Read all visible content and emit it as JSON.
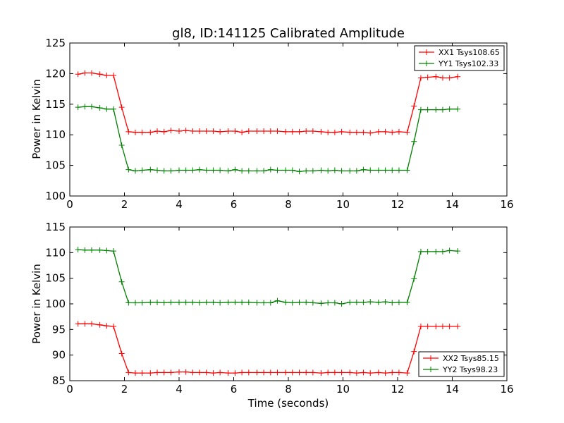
{
  "chart_data": [
    {
      "type": "line",
      "title": "gl8, ID:141125 Calibrated Amplitude",
      "xlabel": "",
      "ylabel": "Power in Kelvin",
      "xlim": [
        0,
        16
      ],
      "ylim": [
        100,
        125
      ],
      "xticks": [
        0,
        2,
        4,
        6,
        8,
        10,
        12,
        14,
        16
      ],
      "yticks": [
        100,
        105,
        110,
        115,
        120,
        125
      ],
      "grid": false,
      "legend_position": "top-right",
      "x": [
        0.3,
        0.55,
        0.8,
        1.1,
        1.35,
        1.6,
        1.9,
        2.15,
        2.4,
        2.65,
        2.95,
        3.2,
        3.45,
        3.7,
        4.0,
        4.25,
        4.5,
        4.75,
        5.0,
        5.25,
        5.5,
        5.8,
        6.05,
        6.3,
        6.55,
        6.85,
        7.1,
        7.35,
        7.6,
        7.9,
        8.15,
        8.4,
        8.65,
        8.9,
        9.2,
        9.45,
        9.7,
        9.95,
        10.25,
        10.5,
        10.75,
        11.0,
        11.3,
        11.55,
        11.8,
        12.05,
        12.35,
        12.6,
        12.85,
        13.1,
        13.4,
        13.65,
        13.9,
        14.2
      ],
      "series": [
        {
          "name": "XX1 Tsys108.65",
          "color": "#ff0000",
          "values": [
            119.9,
            120.1,
            120.1,
            119.9,
            119.7,
            119.7,
            114.5,
            110.5,
            110.4,
            110.4,
            110.4,
            110.6,
            110.5,
            110.7,
            110.6,
            110.7,
            110.6,
            110.6,
            110.6,
            110.6,
            110.5,
            110.6,
            110.6,
            110.4,
            110.6,
            110.6,
            110.6,
            110.6,
            110.6,
            110.5,
            110.5,
            110.5,
            110.6,
            110.6,
            110.5,
            110.4,
            110.4,
            110.5,
            110.4,
            110.4,
            110.4,
            110.3,
            110.5,
            110.5,
            110.4,
            110.5,
            110.4,
            114.7,
            119.3,
            119.4,
            119.5,
            119.3,
            119.3,
            119.5
          ]
        },
        {
          "name": "YY1 Tsys102.33",
          "color": "#008000",
          "values": [
            114.5,
            114.6,
            114.6,
            114.4,
            114.2,
            114.2,
            108.3,
            104.3,
            104.1,
            104.2,
            104.3,
            104.2,
            104.1,
            104.1,
            104.2,
            104.2,
            104.2,
            104.3,
            104.2,
            104.2,
            104.2,
            104.1,
            104.3,
            104.1,
            104.1,
            104.1,
            104.1,
            104.3,
            104.2,
            104.2,
            104.2,
            104.0,
            104.1,
            104.1,
            104.2,
            104.1,
            104.2,
            104.1,
            104.1,
            104.1,
            104.3,
            104.2,
            104.2,
            104.2,
            104.2,
            104.2,
            104.2,
            108.9,
            114.1,
            114.1,
            114.1,
            114.1,
            114.2,
            114.2
          ]
        }
      ]
    },
    {
      "type": "line",
      "title": "",
      "xlabel": "Time (seconds)",
      "ylabel": "Power in Kelvin",
      "xlim": [
        0,
        16
      ],
      "ylim": [
        85,
        115
      ],
      "xticks": [
        0,
        2,
        4,
        6,
        8,
        10,
        12,
        14,
        16
      ],
      "yticks": [
        85,
        90,
        95,
        100,
        105,
        110,
        115
      ],
      "grid": false,
      "legend_position": "bottom-right",
      "x": [
        0.3,
        0.55,
        0.8,
        1.1,
        1.35,
        1.6,
        1.9,
        2.15,
        2.4,
        2.65,
        2.95,
        3.2,
        3.45,
        3.7,
        4.0,
        4.25,
        4.5,
        4.75,
        5.0,
        5.25,
        5.5,
        5.8,
        6.05,
        6.3,
        6.55,
        6.85,
        7.1,
        7.35,
        7.6,
        7.9,
        8.15,
        8.4,
        8.65,
        8.9,
        9.2,
        9.45,
        9.7,
        9.95,
        10.25,
        10.5,
        10.75,
        11.0,
        11.3,
        11.55,
        11.8,
        12.05,
        12.35,
        12.6,
        12.85,
        13.1,
        13.4,
        13.65,
        13.9,
        14.2
      ],
      "series": [
        {
          "name": "XX2 Tsys85.15",
          "color": "#ff0000",
          "values": [
            96.1,
            96.1,
            96.1,
            95.9,
            95.7,
            95.6,
            90.3,
            86.6,
            86.5,
            86.5,
            86.5,
            86.6,
            86.6,
            86.6,
            86.7,
            86.7,
            86.6,
            86.6,
            86.6,
            86.5,
            86.6,
            86.5,
            86.5,
            86.6,
            86.6,
            86.6,
            86.6,
            86.6,
            86.6,
            86.6,
            86.6,
            86.6,
            86.6,
            86.6,
            86.5,
            86.6,
            86.6,
            86.6,
            86.6,
            86.5,
            86.6,
            86.5,
            86.6,
            86.5,
            86.6,
            86.6,
            86.5,
            90.7,
            95.6,
            95.6,
            95.6,
            95.6,
            95.6,
            95.6
          ]
        },
        {
          "name": "YY2 Tsys98.23",
          "color": "#008000",
          "values": [
            110.6,
            110.5,
            110.5,
            110.5,
            110.4,
            110.3,
            104.3,
            100.2,
            100.2,
            100.2,
            100.3,
            100.3,
            100.2,
            100.3,
            100.3,
            100.3,
            100.3,
            100.2,
            100.3,
            100.3,
            100.2,
            100.3,
            100.3,
            100.3,
            100.3,
            100.2,
            100.2,
            100.2,
            100.6,
            100.3,
            100.2,
            100.3,
            100.3,
            100.2,
            100.1,
            100.2,
            100.2,
            100.0,
            100.3,
            100.3,
            100.3,
            100.4,
            100.3,
            100.4,
            100.2,
            100.3,
            100.3,
            104.9,
            110.2,
            110.2,
            110.2,
            110.2,
            110.4,
            110.3
          ]
        }
      ]
    }
  ]
}
